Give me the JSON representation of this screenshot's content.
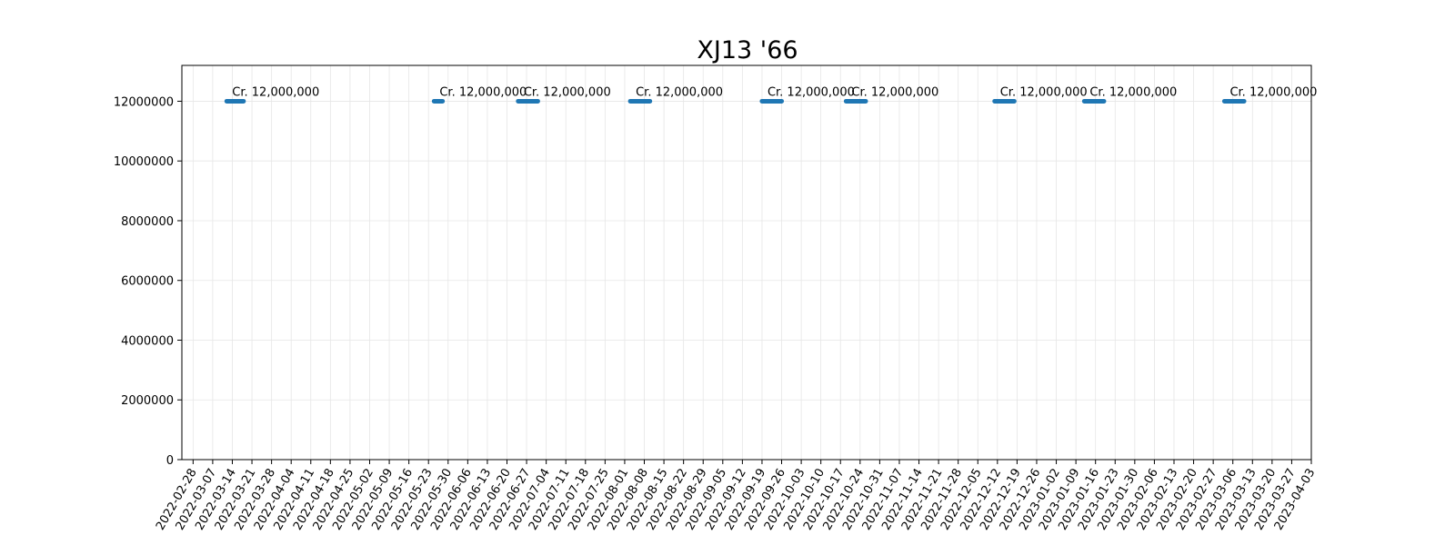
{
  "chart_data": {
    "type": "line",
    "title": "XJ13 '66",
    "xlabel": "",
    "ylabel": "",
    "x_axis": "date",
    "xlim": [
      "2022-02-24",
      "2023-04-03"
    ],
    "ylim": [
      0,
      13200000
    ],
    "grid": true,
    "legend": "none",
    "y_ticks": [
      0,
      2000000,
      4000000,
      6000000,
      8000000,
      10000000,
      12000000
    ],
    "x_ticks": [
      "2022-02-28",
      "2022-03-07",
      "2022-03-14",
      "2022-03-21",
      "2022-03-28",
      "2022-04-04",
      "2022-04-11",
      "2022-04-18",
      "2022-04-25",
      "2022-05-02",
      "2022-05-09",
      "2022-05-16",
      "2022-05-23",
      "2022-05-30",
      "2022-06-06",
      "2022-06-13",
      "2022-06-20",
      "2022-06-27",
      "2022-07-04",
      "2022-07-11",
      "2022-07-18",
      "2022-07-25",
      "2022-08-01",
      "2022-08-08",
      "2022-08-15",
      "2022-08-22",
      "2022-08-29",
      "2022-09-05",
      "2022-09-12",
      "2022-09-19",
      "2022-09-26",
      "2022-10-03",
      "2022-10-10",
      "2022-10-17",
      "2022-10-24",
      "2022-10-31",
      "2022-11-07",
      "2022-11-14",
      "2022-11-21",
      "2022-11-28",
      "2022-12-05",
      "2022-12-12",
      "2022-12-19",
      "2022-12-26",
      "2023-01-02",
      "2023-01-09",
      "2023-01-16",
      "2023-01-23",
      "2023-01-30",
      "2023-02-06",
      "2023-02-13",
      "2023-02-20",
      "2023-02-27",
      "2023-03-06",
      "2023-03-13",
      "2023-03-20",
      "2023-03-27",
      "2023-04-03"
    ],
    "series": [
      {
        "color": "#1f77b4",
        "segments": [
          {
            "start": "2022-03-12",
            "end": "2022-03-18",
            "value": 12000000,
            "label": "Cr. 12,000,000"
          },
          {
            "start": "2022-05-25",
            "end": "2022-05-28",
            "value": 12000000,
            "label": "Cr. 12,000,000"
          },
          {
            "start": "2022-06-24",
            "end": "2022-07-01",
            "value": 12000000,
            "label": "Cr. 12,000,000"
          },
          {
            "start": "2022-08-03",
            "end": "2022-08-10",
            "value": 12000000,
            "label": "Cr. 12,000,000"
          },
          {
            "start": "2022-09-19",
            "end": "2022-09-26",
            "value": 12000000,
            "label": "Cr. 12,000,000"
          },
          {
            "start": "2022-10-19",
            "end": "2022-10-26",
            "value": 12000000,
            "label": "Cr. 12,000,000"
          },
          {
            "start": "2022-12-11",
            "end": "2022-12-18",
            "value": 12000000,
            "label": "Cr. 12,000,000"
          },
          {
            "start": "2023-01-12",
            "end": "2023-01-19",
            "value": 12000000,
            "label": "Cr. 12,000,000"
          },
          {
            "start": "2023-03-03",
            "end": "2023-03-10",
            "value": 12000000,
            "label": "Cr. 12,000,000"
          }
        ]
      }
    ]
  }
}
